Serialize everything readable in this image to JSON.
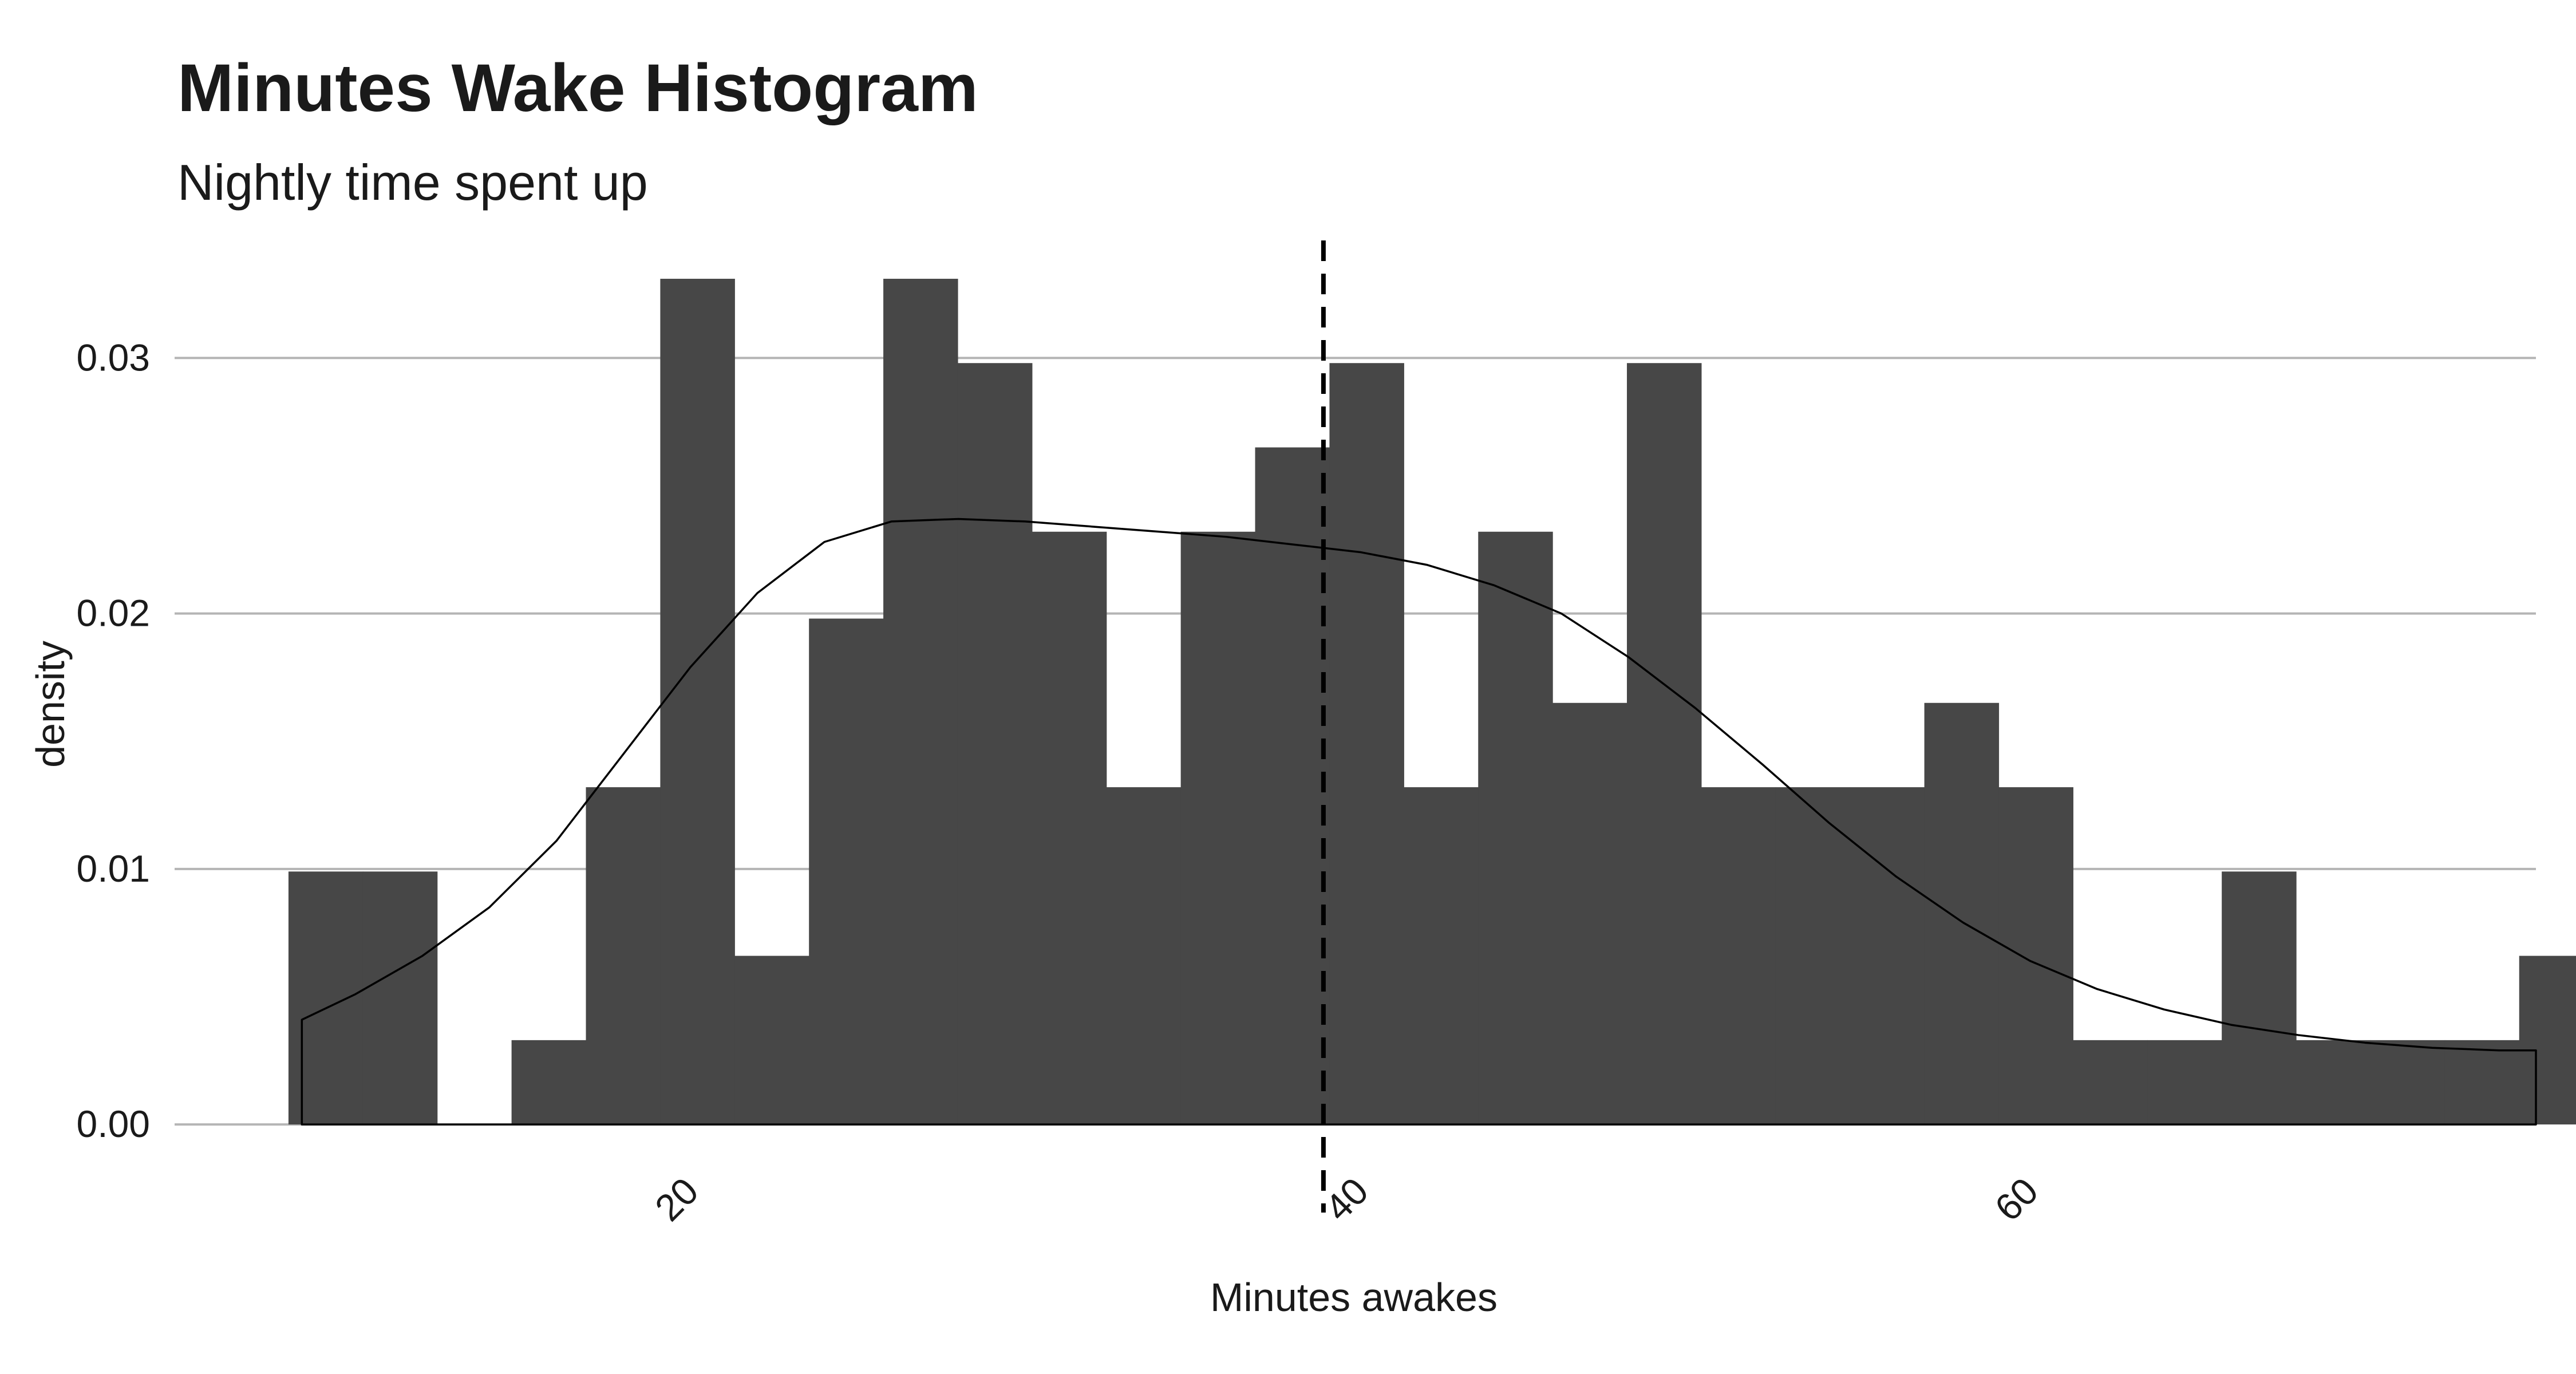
{
  "chart_data": {
    "type": "bar",
    "title": "Minutes Wake Histogram",
    "subtitle": "Nightly time spent up",
    "xlabel": "Minutes awakes",
    "ylabel": "density",
    "xlim": [
      4.6,
      75.1
    ],
    "ylim": [
      -0.0017,
      0.0346
    ],
    "x_ticks": [
      20,
      40,
      60
    ],
    "y_ticks": [
      0.0,
      0.01,
      0.02,
      0.03
    ],
    "y_tick_labels": [
      "0.00",
      "0.01",
      "0.02",
      "0.03"
    ],
    "grid": "horizontal",
    "bin_width": 2.22,
    "bins": [
      {
        "x0": 8.0,
        "x1": 10.22,
        "y": 0.0099
      },
      {
        "x0": 10.22,
        "x1": 12.44,
        "y": 0.0099
      },
      {
        "x0": 12.44,
        "x1": 14.66,
        "y": 0.0
      },
      {
        "x0": 14.66,
        "x1": 16.88,
        "y": 0.0033
      },
      {
        "x0": 16.88,
        "x1": 19.1,
        "y": 0.0132
      },
      {
        "x0": 19.1,
        "x1": 21.32,
        "y": 0.0331
      },
      {
        "x0": 21.32,
        "x1": 23.54,
        "y": 0.0066
      },
      {
        "x0": 23.54,
        "x1": 25.76,
        "y": 0.0198
      },
      {
        "x0": 25.76,
        "x1": 27.98,
        "y": 0.0331
      },
      {
        "x0": 27.98,
        "x1": 30.2,
        "y": 0.0298
      },
      {
        "x0": 30.2,
        "x1": 32.42,
        "y": 0.0232
      },
      {
        "x0": 32.42,
        "x1": 34.64,
        "y": 0.0132
      },
      {
        "x0": 34.64,
        "x1": 36.86,
        "y": 0.0232
      },
      {
        "x0": 36.86,
        "x1": 39.08,
        "y": 0.0265
      },
      {
        "x0": 39.08,
        "x1": 41.3,
        "y": 0.0298
      },
      {
        "x0": 41.3,
        "x1": 43.52,
        "y": 0.0132
      },
      {
        "x0": 43.52,
        "x1": 45.74,
        "y": 0.0232
      },
      {
        "x0": 45.74,
        "x1": 47.96,
        "y": 0.0165
      },
      {
        "x0": 47.96,
        "x1": 50.18,
        "y": 0.0298
      },
      {
        "x0": 50.18,
        "x1": 52.4,
        "y": 0.0132
      },
      {
        "x0": 52.4,
        "x1": 54.62,
        "y": 0.0132
      },
      {
        "x0": 54.62,
        "x1": 56.84,
        "y": 0.0132
      },
      {
        "x0": 56.84,
        "x1": 59.06,
        "y": 0.0165
      },
      {
        "x0": 59.06,
        "x1": 61.28,
        "y": 0.0132
      },
      {
        "x0": 61.28,
        "x1": 63.5,
        "y": 0.0033
      },
      {
        "x0": 63.5,
        "x1": 65.72,
        "y": 0.0033
      },
      {
        "x0": 65.72,
        "x1": 67.94,
        "y": 0.0099
      },
      {
        "x0": 67.94,
        "x1": 70.16,
        "y": 0.0033
      },
      {
        "x0": 70.16,
        "x1": 72.38,
        "y": 0.0033
      },
      {
        "x0": 72.38,
        "x1": 74.6,
        "y": 0.0033
      },
      {
        "x0": 74.6,
        "x1": 76.82,
        "y": 0.0066
      }
    ],
    "density_curve": {
      "x": [
        8.4,
        10,
        12,
        14,
        16,
        18,
        20,
        22,
        24,
        26,
        28,
        30,
        32,
        34,
        36,
        38,
        40,
        42,
        44,
        46,
        48,
        50,
        52,
        54,
        56,
        58,
        60,
        62,
        64,
        66,
        68,
        70,
        72,
        74,
        75.1
      ],
      "y": [
        0.0041,
        0.0051,
        0.0066,
        0.0085,
        0.0111,
        0.0145,
        0.0179,
        0.0208,
        0.0228,
        0.0236,
        0.0237,
        0.0236,
        0.0234,
        0.0232,
        0.023,
        0.0227,
        0.0224,
        0.0219,
        0.0211,
        0.02,
        0.0183,
        0.0163,
        0.0141,
        0.0118,
        0.0097,
        0.0079,
        0.0064,
        0.0053,
        0.0045,
        0.0039,
        0.0035,
        0.0032,
        0.003,
        0.0029,
        0.0029
      ]
    },
    "mean_line": {
      "x": 38.9,
      "style": "dashed"
    },
    "colors": {
      "bars": "#474747",
      "curve": "#000000",
      "mean_line": "#000000",
      "grid": "#b5b5b5"
    }
  }
}
